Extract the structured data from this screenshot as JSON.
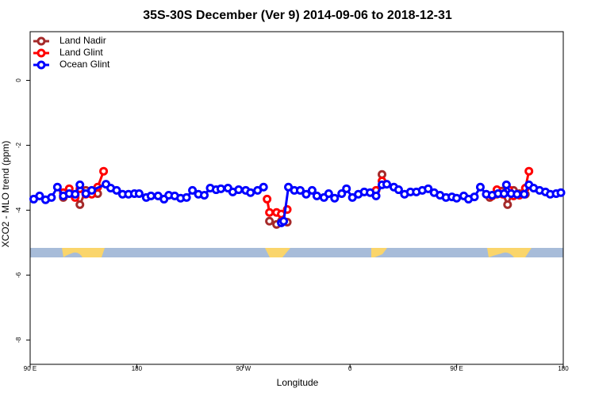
{
  "chart_data": {
    "type": "line",
    "title": "35S-30S December (Ver 9)   2014-09-06 to 2018-12-31",
    "x_label": "Longitude",
    "y_label": "XCO2 - MLO trend (ppm)",
    "xlim": [
      90,
      540
    ],
    "ylim": [
      -8.75,
      1.5
    ],
    "xticks": [
      {
        "value": 90,
        "label": "90 E"
      },
      {
        "value": 180,
        "label": "180"
      },
      {
        "value": 270,
        "label": "90 W"
      },
      {
        "value": 360,
        "label": "0"
      },
      {
        "value": 450,
        "label": "90 E"
      },
      {
        "value": 540,
        "label": "180"
      }
    ],
    "yticks": [
      0,
      -2,
      -4,
      -6,
      -8
    ],
    "legend": "topleft",
    "series": [
      {
        "name": "Land Nadir",
        "color": "#a52a2a",
        "x": [
          118,
          123,
          128,
          132,
          137,
          142,
          147,
          290,
          292,
          298,
          302,
          307,
          350,
          387,
          420,
          478,
          484,
          488,
          493,
          498,
          503,
          508
        ],
        "values": [
          -3.61,
          -3.46,
          -3.54,
          -3.83,
          -3.39,
          -3.49,
          -3.49,
          null,
          -4.34,
          -4.44,
          -4.34,
          -4.37,
          null,
          -2.9,
          null,
          -3.61,
          -3.51,
          -3.41,
          -3.83,
          -3.39,
          -3.49,
          -3.51
        ]
      },
      {
        "name": "Land Glint",
        "color": "#ff0000",
        "x": [
          118,
          123,
          128,
          132,
          137,
          142,
          147,
          152,
          220,
          290,
          292,
          298,
          302,
          307,
          350,
          382,
          387,
          420,
          480,
          484,
          489,
          494,
          498,
          503,
          508,
          511
        ],
        "values": [
          -3.46,
          -3.34,
          -3.61,
          -3.34,
          -3.51,
          -3.51,
          -3.29,
          -2.8,
          null,
          -3.66,
          -4.07,
          -4.07,
          -4.12,
          -3.98,
          null,
          -3.39,
          -3.1,
          null,
          -3.56,
          -3.37,
          -3.51,
          -3.37,
          -3.56,
          -3.54,
          -3.32,
          -2.8
        ]
      },
      {
        "name": "Ocean Glint",
        "color": "#0000ff",
        "x": [
          93,
          98,
          103,
          108,
          113,
          118,
          123,
          128,
          132,
          137,
          142,
          154,
          158,
          163,
          168,
          173,
          178,
          182,
          188,
          192,
          198,
          203,
          207,
          212,
          217,
          222,
          227,
          232,
          237,
          242,
          247,
          251,
          257,
          261,
          266,
          272,
          276,
          282,
          287,
          290,
          302,
          304,
          308,
          313,
          318,
          323,
          328,
          332,
          338,
          342,
          347,
          353,
          357,
          362,
          367,
          372,
          377,
          382,
          387,
          391,
          397,
          401,
          406,
          411,
          416,
          421,
          426,
          431,
          436,
          441,
          446,
          450,
          456,
          460,
          465,
          470,
          475,
          480,
          485,
          490,
          492,
          496,
          501,
          507,
          511,
          515,
          520,
          525,
          529,
          534,
          538
        ],
        "values": [
          -3.66,
          -3.56,
          -3.68,
          -3.61,
          -3.29,
          -3.56,
          -3.49,
          -3.51,
          -3.22,
          -3.49,
          -3.39,
          -3.2,
          -3.32,
          -3.39,
          -3.51,
          -3.51,
          -3.49,
          -3.49,
          -3.61,
          -3.56,
          -3.56,
          -3.66,
          -3.54,
          -3.56,
          -3.63,
          -3.61,
          -3.39,
          -3.51,
          -3.54,
          -3.32,
          -3.37,
          -3.34,
          -3.32,
          -3.44,
          -3.37,
          -3.39,
          -3.46,
          -3.39,
          -3.29,
          null,
          -4.39,
          -4.34,
          -3.29,
          -3.39,
          -3.39,
          -3.51,
          -3.39,
          -3.56,
          -3.61,
          -3.49,
          -3.63,
          -3.49,
          -3.34,
          -3.61,
          -3.51,
          -3.44,
          -3.46,
          -3.56,
          -3.22,
          -3.2,
          -3.29,
          -3.37,
          -3.51,
          -3.44,
          -3.44,
          -3.39,
          -3.34,
          -3.46,
          -3.54,
          -3.61,
          -3.59,
          -3.63,
          -3.56,
          -3.66,
          -3.59,
          -3.29,
          -3.51,
          -3.54,
          -3.49,
          -3.49,
          -3.22,
          -3.49,
          -3.51,
          -3.51,
          -3.22,
          -3.32,
          -3.39,
          -3.44,
          -3.51,
          -3.49,
          -3.46
        ]
      }
    ]
  }
}
